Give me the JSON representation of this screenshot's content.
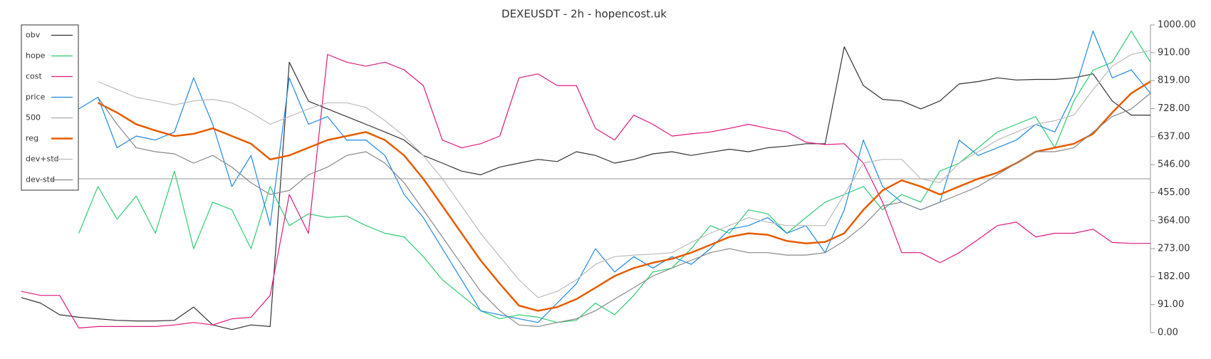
{
  "chart_data": {
    "type": "line",
    "title": "DEXEUSDT - 2h - hopencost.uk",
    "ylim": [
      0,
      1000
    ],
    "yticks": [
      {
        "value": 0,
        "label": "0.00"
      },
      {
        "value": 91,
        "label": "91.00"
      },
      {
        "value": 182,
        "label": "182.00"
      },
      {
        "value": 273,
        "label": "273.00"
      },
      {
        "value": 364,
        "label": "364.00"
      },
      {
        "value": 455,
        "label": "455.00"
      },
      {
        "value": 546,
        "label": "546.00"
      },
      {
        "value": 637,
        "label": "637.00"
      },
      {
        "value": 728,
        "label": "728.00"
      },
      {
        "value": 819,
        "label": "819.00"
      },
      {
        "value": 910,
        "label": "910.00"
      },
      {
        "value": 1000,
        "label": "1000.00"
      }
    ],
    "y_axis_side": "right",
    "legend": "upper left",
    "series": [
      {
        "name": "obv",
        "color": "#333333",
        "width": 1.2,
        "values": [
          114,
          96,
          58,
          50,
          45,
          40,
          38,
          38,
          40,
          83,
          25,
          10,
          25,
          20,
          879,
          752,
          727,
          702,
          677,
          652,
          626,
          576,
          551,
          525,
          513,
          538,
          551,
          563,
          556,
          588,
          576,
          551,
          563,
          581,
          588,
          576,
          586,
          596,
          588,
          601,
          606,
          614,
          614,
          929,
          803,
          758,
          753,
          727,
          753,
          808,
          816,
          828,
          821,
          823,
          823,
          828,
          841,
          753,
          707,
          707
        ]
      },
      {
        "name": "hope",
        "color": "#2ecc71",
        "width": 1.2,
        "values": [
          null,
          null,
          null,
          323,
          475,
          369,
          444,
          323,
          525,
          273,
          424,
          399,
          273,
          475,
          348,
          386,
          374,
          379,
          348,
          323,
          311,
          247,
          172,
          121,
          71,
          45,
          58,
          50,
          33,
          40,
          96,
          58,
          121,
          197,
          210,
          273,
          348,
          323,
          399,
          386,
          323,
          374,
          424,
          449,
          475,
          399,
          449,
          424,
          525,
          551,
          601,
          652,
          677,
          702,
          601,
          753,
          853,
          879,
          980,
          879
        ]
      },
      {
        "name": "cost",
        "color": "#e0197d",
        "width": 1.2,
        "values": [
          134,
          121,
          121,
          15,
          20,
          20,
          20,
          20,
          25,
          33,
          25,
          45,
          50,
          121,
          449,
          323,
          904,
          879,
          866,
          879,
          854,
          803,
          626,
          601,
          614,
          639,
          828,
          841,
          803,
          803,
          664,
          626,
          707,
          677,
          639,
          646,
          652,
          664,
          677,
          664,
          652,
          619,
          611,
          614,
          551,
          424,
          260,
          260,
          227,
          260,
          303,
          348,
          359,
          311,
          323,
          323,
          336,
          293,
          290,
          290
        ]
      },
      {
        "name": "price",
        "color": "#1e88e5",
        "width": 1.2,
        "values": [
          null,
          null,
          null,
          727,
          765,
          601,
          639,
          626,
          652,
          828,
          677,
          475,
          576,
          348,
          828,
          677,
          702,
          626,
          626,
          576,
          449,
          374,
          273,
          172,
          71,
          58,
          45,
          33,
          96,
          159,
          273,
          197,
          247,
          210,
          247,
          222,
          273,
          336,
          348,
          374,
          323,
          348,
          260,
          399,
          626,
          475,
          424,
          399,
          424,
          626,
          576,
          601,
          626,
          677,
          652,
          778,
          980,
          828,
          854,
          778
        ]
      },
      {
        "name": "500",
        "color": "#aaaaaa",
        "width": 1.2,
        "values": [
          500,
          500,
          500,
          500,
          500,
          500,
          500,
          500,
          500,
          500,
          500,
          500,
          500,
          500,
          500,
          500,
          500,
          500,
          500,
          500,
          500,
          500,
          500,
          500,
          500,
          500,
          500,
          500,
          500,
          500,
          500,
          500,
          500,
          500,
          500,
          500,
          500,
          500,
          500,
          500,
          500,
          500,
          500,
          500,
          500,
          500,
          500,
          500,
          500,
          500,
          500,
          500,
          500,
          500,
          500,
          500,
          500,
          500,
          500,
          500
        ]
      },
      {
        "name": "reg",
        "color": "#e65c00",
        "width": 2.5,
        "values": [
          null,
          null,
          null,
          null,
          747,
          715,
          677,
          657,
          639,
          646,
          664,
          639,
          614,
          563,
          576,
          601,
          626,
          639,
          652,
          626,
          576,
          500,
          412,
          323,
          235,
          159,
          88,
          71,
          83,
          109,
          146,
          184,
          210,
          227,
          240,
          260,
          285,
          311,
          323,
          318,
          298,
          290,
          295,
          323,
          399,
          462,
          495,
          475,
          449,
          475,
          500,
          520,
          551,
          588,
          601,
          614,
          646,
          715,
          778,
          816
        ]
      },
      {
        "name": "dev+std",
        "color": "#bbbbbb",
        "width": 1.2,
        "values": [
          null,
          null,
          null,
          null,
          816,
          790,
          765,
          753,
          740,
          753,
          758,
          747,
          715,
          677,
          702,
          727,
          747,
          747,
          732,
          689,
          639,
          576,
          500,
          412,
          323,
          247,
          172,
          114,
          134,
          172,
          222,
          247,
          252,
          255,
          260,
          293,
          323,
          348,
          374,
          359,
          348,
          348,
          348,
          449,
          551,
          563,
          563,
          500,
          487,
          551,
          588,
          626,
          652,
          677,
          689,
          707,
          790,
          866,
          904,
          917
        ]
      },
      {
        "name": "dev-std",
        "color": "#888888",
        "width": 1.2,
        "values": [
          null,
          null,
          null,
          null,
          765,
          677,
          601,
          588,
          581,
          551,
          576,
          538,
          487,
          449,
          462,
          513,
          538,
          576,
          588,
          551,
          487,
          399,
          311,
          222,
          134,
          71,
          25,
          20,
          33,
          45,
          71,
          109,
          146,
          184,
          210,
          235,
          260,
          273,
          260,
          260,
          252,
          252,
          260,
          298,
          348,
          412,
          424,
          399,
          424,
          449,
          475,
          513,
          551,
          588,
          588,
          601,
          652,
          702,
          727,
          778
        ]
      }
    ]
  }
}
